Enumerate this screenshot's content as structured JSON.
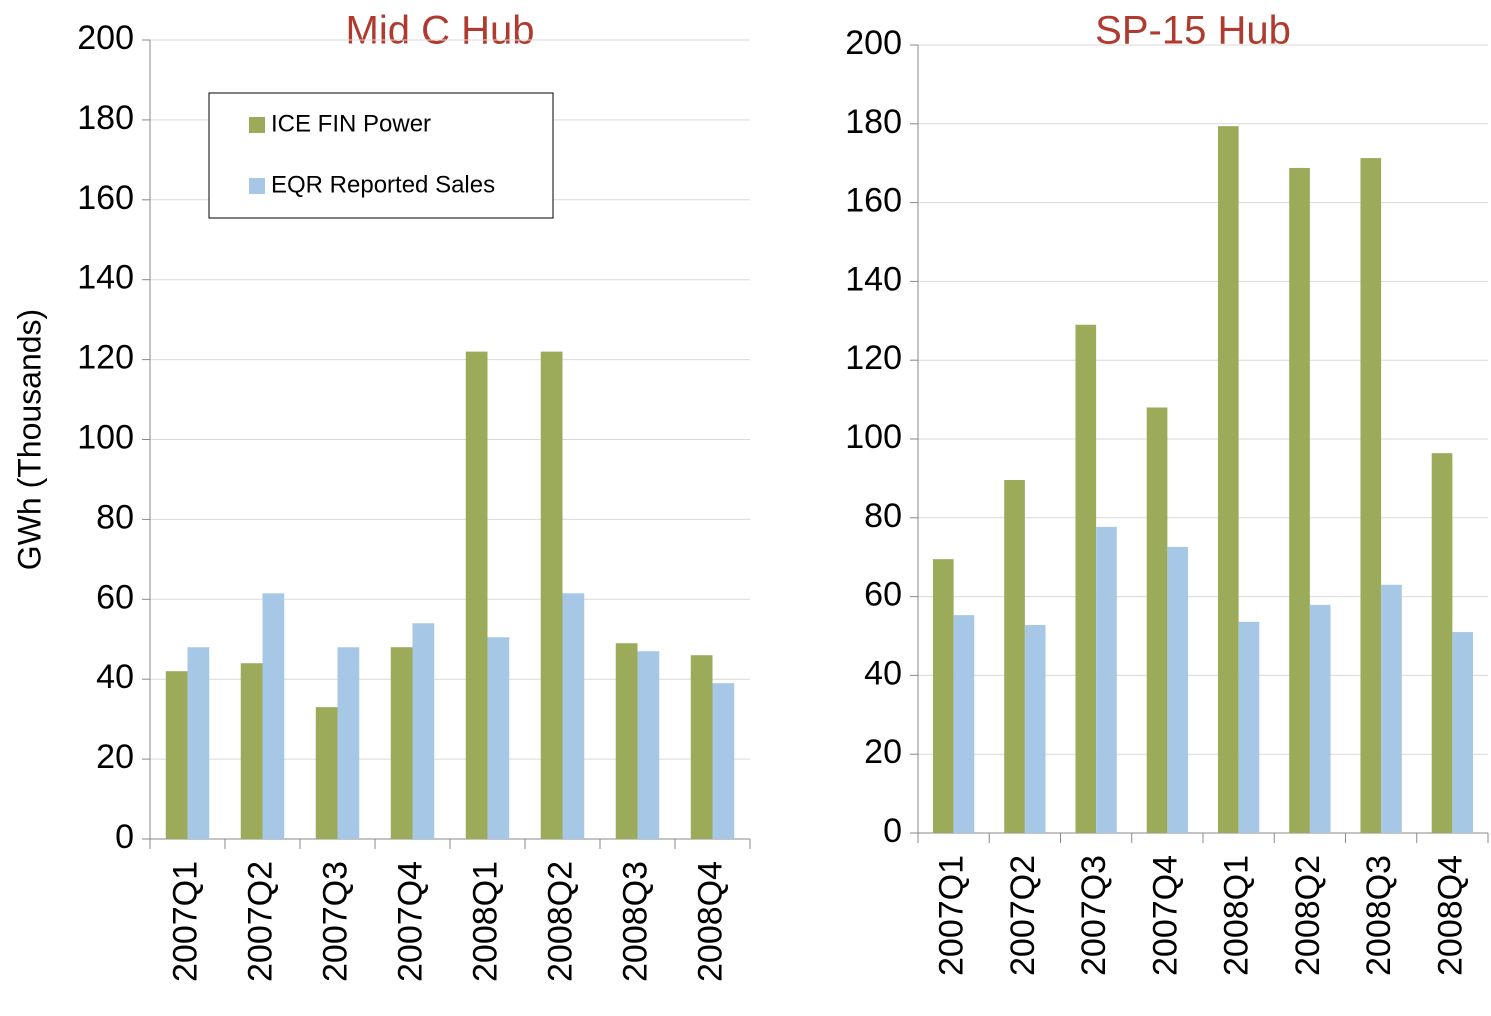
{
  "chart_data": [
    {
      "type": "bar",
      "title": "Mid C Hub",
      "y_label": "GWh (Thousands)",
      "categories": [
        "2007Q1",
        "2007Q2",
        "2007Q3",
        "2007Q4",
        "2008Q1",
        "2008Q2",
        "2008Q3",
        "2008Q4"
      ],
      "series": [
        {
          "name": "ICE FIN Power",
          "color": "#9bab5a",
          "values": [
            42,
            44,
            33,
            48,
            122,
            122,
            49,
            46
          ]
        },
        {
          "name": "EQR Reported Sales",
          "color": "#a6c8e6",
          "values": [
            48,
            61.5,
            48,
            54,
            50.5,
            61.5,
            47,
            39
          ]
        }
      ],
      "ylim": [
        0,
        200
      ],
      "yticks": [
        0,
        20,
        40,
        60,
        80,
        100,
        120,
        140,
        160,
        180,
        200
      ],
      "grid": true,
      "legend": "upper-left"
    },
    {
      "type": "bar",
      "title": "SP-15 Hub",
      "categories": [
        "2007Q1",
        "2007Q2",
        "2007Q3",
        "2007Q4",
        "2008Q1",
        "2008Q2",
        "2008Q3",
        "2008Q4"
      ],
      "series": [
        {
          "color": "#9bab5a",
          "values": [
            69.5,
            89.6,
            129,
            108,
            179.4,
            168.8,
            171.3,
            96.4
          ]
        },
        {
          "color": "#a6c8e6",
          "values": [
            55.3,
            52.8,
            77.7,
            72.6,
            53.6,
            57.9,
            63,
            51
          ]
        }
      ],
      "ylim": [
        0,
        200
      ],
      "yticks": [
        0,
        20,
        40,
        60,
        80,
        100,
        120,
        140,
        160,
        180,
        200
      ],
      "grid": true
    }
  ]
}
